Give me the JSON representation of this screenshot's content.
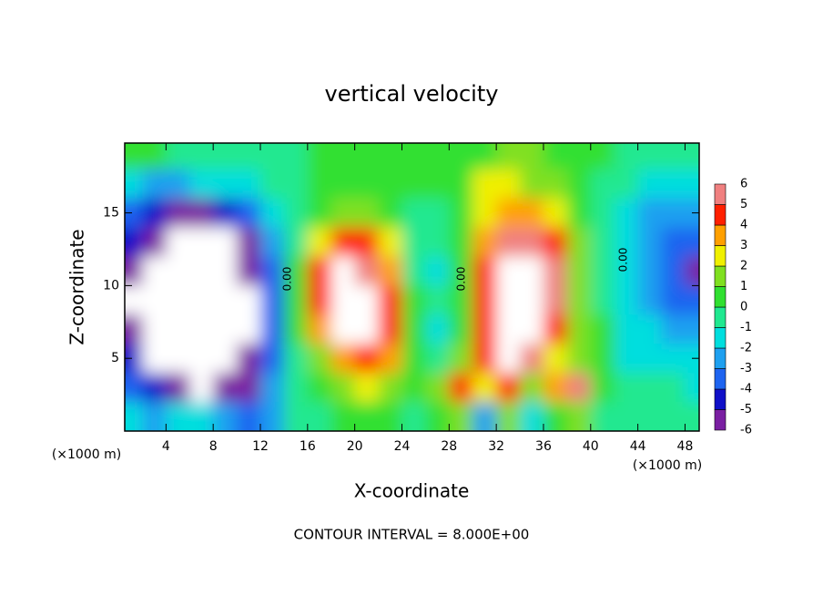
{
  "chart_data": {
    "type": "contour",
    "title": "vertical velocity",
    "xlabel": "X-coordinate",
    "ylabel": "Z-coordinate",
    "x_unit": "(×1000 m)",
    "x_unit_right": "(×1000 m)",
    "footer": "CONTOUR INTERVAL = 8.000E+00",
    "contour_labels": [
      "0.00",
      "0.00",
      "0.00"
    ],
    "xlim": [
      0.5,
      49.2
    ],
    "ylim": [
      0,
      19.8
    ],
    "xticks": [
      4,
      8,
      12,
      16,
      20,
      24,
      28,
      32,
      36,
      40,
      44,
      48
    ],
    "yticks": [
      5,
      10,
      15
    ],
    "levels": [
      -6,
      -5,
      -4,
      -3,
      -2,
      -1,
      0,
      1,
      2,
      3,
      4,
      5,
      6
    ],
    "colors": [
      "#7a1fa2",
      "#1010c8",
      "#1e64f0",
      "#1ea0f0",
      "#00dede",
      "#20e890",
      "#30e030",
      "#80e020",
      "#f0f000",
      "#ffa000",
      "#ff2000",
      "#f08080"
    ],
    "saturation_color": "#ffffff",
    "x": [
      1,
      3,
      5,
      7,
      9,
      11,
      13,
      15,
      17,
      19,
      21,
      23,
      25,
      27,
      29,
      31,
      33,
      35,
      37,
      39,
      41,
      43,
      45,
      47,
      49
    ],
    "y": [
      19,
      17,
      15,
      13,
      11,
      9,
      7,
      5,
      3,
      1
    ],
    "z": [
      [
        1,
        1,
        0,
        0,
        0,
        0,
        0,
        0,
        1,
        1,
        1,
        1,
        1,
        1,
        1,
        1,
        2,
        2,
        1,
        1,
        1,
        0,
        0,
        0,
        0
      ],
      [
        -1,
        -2,
        -2,
        -1,
        -1,
        -1,
        0,
        0,
        1,
        1,
        1,
        1,
        1,
        1,
        1,
        3,
        3,
        2,
        2,
        1,
        0,
        0,
        -1,
        -1,
        -1
      ],
      [
        -3,
        -4,
        -5,
        -5,
        -4,
        -3,
        -1,
        0,
        1,
        2,
        2,
        1,
        0,
        0,
        1,
        3,
        4,
        4,
        3,
        1,
        0,
        -1,
        -2,
        -2,
        -2
      ],
      [
        -4,
        -6,
        -8,
        -8,
        -7,
        -5,
        -2,
        0,
        3,
        5,
        5,
        3,
        0,
        0,
        1,
        4,
        6,
        6,
        5,
        2,
        0,
        -1,
        -2,
        -3,
        -3
      ],
      [
        -5,
        -8,
        -9,
        -9,
        -8,
        -6,
        -3,
        1,
        5,
        7,
        6,
        4,
        0,
        -1,
        1,
        5,
        8,
        8,
        6,
        2,
        0,
        -1,
        -2,
        -3,
        -5
      ],
      [
        -7,
        -8,
        -9,
        -9,
        -9,
        -7,
        -3,
        1,
        5,
        8,
        8,
        5,
        1,
        0,
        1,
        5,
        8,
        8,
        6,
        2,
        0,
        -1,
        -2,
        -3,
        -3
      ],
      [
        -5,
        -8,
        -9,
        -9,
        -8,
        -7,
        -3,
        1,
        4,
        7,
        8,
        5,
        1,
        -1,
        1,
        5,
        8,
        8,
        5,
        2,
        1,
        -1,
        -1,
        -2,
        -2
      ],
      [
        -4,
        -7,
        -8,
        -9,
        -8,
        -6,
        -3,
        0,
        2,
        4,
        5,
        4,
        1,
        0,
        2,
        5,
        7,
        6,
        3,
        2,
        1,
        -1,
        -1,
        -1,
        -1
      ],
      [
        -3,
        -4,
        -5,
        -7,
        -6,
        -5,
        -2,
        0,
        1,
        2,
        3,
        2,
        1,
        2,
        5,
        3,
        5,
        2,
        4,
        6,
        1,
        0,
        0,
        0,
        -1
      ],
      [
        -1,
        -2,
        -1,
        -1,
        -2,
        -3,
        -2,
        0,
        0,
        1,
        1,
        1,
        0,
        1,
        2,
        -2,
        2,
        -1,
        1,
        2,
        0,
        0,
        0,
        0,
        0
      ]
    ]
  }
}
